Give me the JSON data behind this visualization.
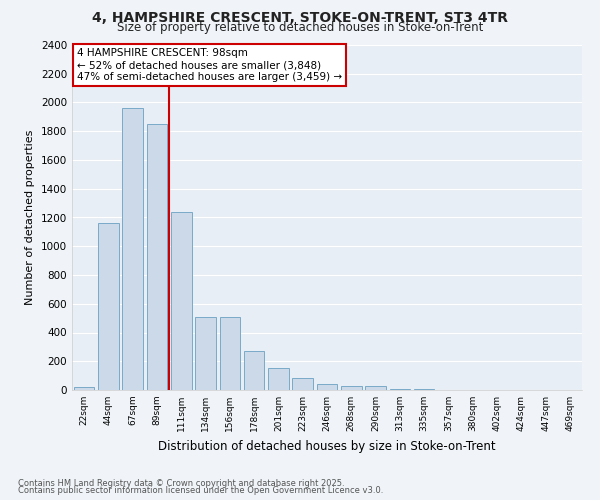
{
  "title_line1": "4, HAMPSHIRE CRESCENT, STOKE-ON-TRENT, ST3 4TR",
  "title_line2": "Size of property relative to detached houses in Stoke-on-Trent",
  "xlabel": "Distribution of detached houses by size in Stoke-on-Trent",
  "ylabel": "Number of detached properties",
  "categories": [
    "22sqm",
    "44sqm",
    "67sqm",
    "89sqm",
    "111sqm",
    "134sqm",
    "156sqm",
    "178sqm",
    "201sqm",
    "223sqm",
    "246sqm",
    "268sqm",
    "290sqm",
    "313sqm",
    "335sqm",
    "357sqm",
    "380sqm",
    "402sqm",
    "424sqm",
    "447sqm",
    "469sqm"
  ],
  "values": [
    20,
    1160,
    1960,
    1850,
    1240,
    510,
    510,
    270,
    155,
    85,
    45,
    30,
    28,
    10,
    5,
    3,
    2,
    2,
    1,
    1,
    1
  ],
  "bar_color": "#ccd9e8",
  "bar_edge_color": "#7aaac8",
  "vline_x": 3.5,
  "vline_color": "#cc0000",
  "annotation_text": "4 HAMPSHIRE CRESCENT: 98sqm\n← 52% of detached houses are smaller (3,848)\n47% of semi-detached houses are larger (3,459) →",
  "annotation_box_color": "#ffffff",
  "annotation_box_edge": "#cc0000",
  "ylim": [
    0,
    2400
  ],
  "yticks": [
    0,
    200,
    400,
    600,
    800,
    1000,
    1200,
    1400,
    1600,
    1800,
    2000,
    2200,
    2400
  ],
  "bg_color": "#e8eef5",
  "grid_color": "#ffffff",
  "fig_bg_color": "#f0f4f8",
  "footer_line1": "Contains HM Land Registry data © Crown copyright and database right 2025.",
  "footer_line2": "Contains public sector information licensed under the Open Government Licence v3.0."
}
